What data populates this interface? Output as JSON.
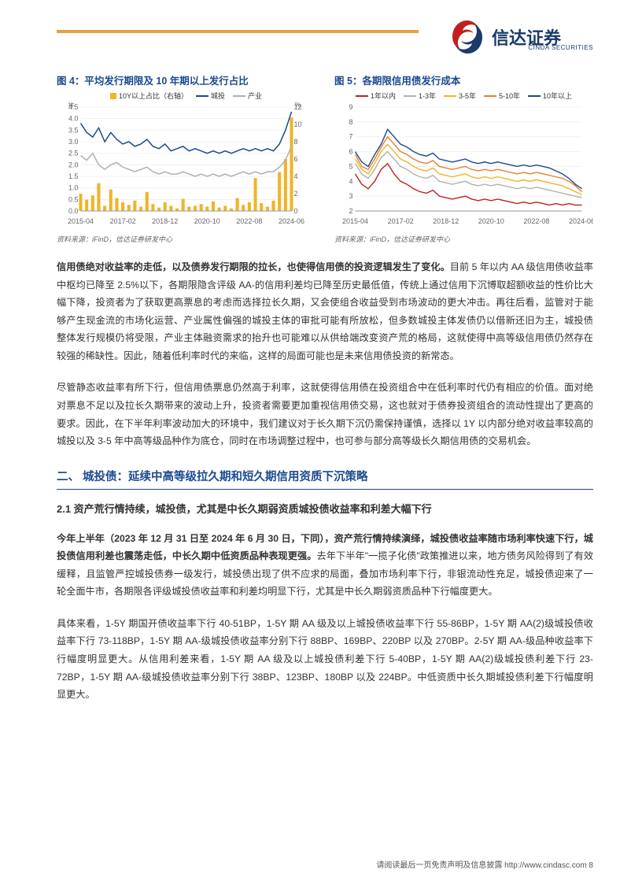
{
  "brand": {
    "cn": "信达证券",
    "en": "CINDA SECURITIES",
    "accent_navy": "#1a3a6a",
    "accent_red": "#c02020"
  },
  "top_bar_color": "#e8a040",
  "chart4": {
    "title": "图 4：平均发行期限及 10 年期以上发行占比",
    "source": "资料来源：iFinD，信达证券研发中心",
    "type": "combo-bar-line",
    "x_labels": [
      "2015-04",
      "2017-02",
      "2018-12",
      "2020-10",
      "2022-08",
      "2024-06"
    ],
    "y_left_label": "年",
    "y_right_label": "%",
    "y_left_lim": [
      0,
      4.5
    ],
    "y_left_ticks": [
      0,
      0.5,
      1.0,
      1.5,
      2.0,
      2.5,
      3.0,
      3.5,
      4.0,
      4.5
    ],
    "y_right_lim": [
      0,
      12
    ],
    "y_right_ticks": [
      0,
      2,
      4,
      6,
      8,
      10,
      12
    ],
    "background_color": "#ffffff",
    "grid_color": "#f0f0f0",
    "series": {
      "bars_10y": {
        "label": "10Y以上占比（右轴）",
        "color": "#f0b428",
        "axis": "right",
        "values": [
          2.0,
          1.3,
          1.8,
          3.2,
          0.6,
          2.5,
          1.5,
          1.0,
          0.7,
          1.2,
          0.5,
          2.2,
          0.8,
          0.4,
          1.0,
          0.6,
          0.3,
          1.4,
          0.5,
          0.6,
          0.8,
          0.5,
          1.1,
          0.4,
          0.6,
          0.3,
          1.5,
          0.7,
          1.0,
          3.8,
          0.9,
          0.5,
          1.2,
          4.5,
          6.0,
          10.8
        ]
      },
      "city_line": {
        "label": "城投",
        "color": "#1b4a8f",
        "axis": "left",
        "values": [
          3.8,
          3.4,
          3.2,
          3.6,
          3.0,
          3.4,
          3.1,
          2.9,
          3.0,
          2.8,
          2.9,
          3.1,
          2.8,
          2.7,
          2.9,
          2.6,
          2.7,
          2.8,
          2.6,
          2.7,
          2.6,
          2.5,
          2.6,
          2.5,
          2.6,
          2.5,
          2.6,
          2.7,
          2.6,
          2.7,
          2.6,
          2.7,
          2.6,
          2.9,
          3.5,
          4.3
        ]
      },
      "industry_line": {
        "label": "产业",
        "color": "#b0b0b0",
        "axis": "left",
        "values": [
          2.4,
          2.2,
          2.5,
          2.0,
          1.8,
          2.0,
          2.1,
          1.9,
          1.8,
          1.7,
          1.8,
          1.9,
          1.7,
          1.6,
          1.7,
          1.6,
          1.6,
          1.7,
          1.6,
          1.5,
          1.6,
          1.5,
          1.6,
          1.5,
          1.6,
          1.5,
          1.6,
          1.7,
          1.6,
          1.7,
          1.6,
          1.7,
          1.7,
          1.9,
          2.2,
          2.8
        ]
      }
    },
    "label_fontsize": 9,
    "line_width": 1.5
  },
  "chart5": {
    "title": "图 5：各期限信用债发行成本",
    "source": "资料来源：iFinD，信达证券研发中心",
    "type": "line",
    "x_labels": [
      "2015-04",
      "2017-02",
      "2018-12",
      "2020-10",
      "2022-08",
      "2024-06"
    ],
    "y_lim": [
      2,
      9
    ],
    "y_ticks": [
      2,
      3,
      4,
      5,
      6,
      7,
      8,
      9
    ],
    "background_color": "#ffffff",
    "grid_color": "#f0f0f0",
    "series": {
      "lt1y": {
        "label": "1年以内",
        "color": "#c02020",
        "values": [
          4.5,
          3.8,
          3.5,
          4.0,
          4.8,
          5.2,
          4.5,
          4.0,
          3.8,
          3.5,
          3.3,
          3.2,
          3.4,
          3.0,
          2.9,
          2.8,
          2.9,
          3.0,
          2.8,
          2.7,
          2.8,
          2.7,
          2.8,
          2.7,
          2.6,
          2.5,
          2.6,
          2.5,
          2.6,
          2.5,
          2.4,
          2.5,
          2.4,
          2.5,
          2.4,
          2.4
        ]
      },
      "y1_3": {
        "label": "1-3年",
        "color": "#b0b0b0",
        "values": [
          5.2,
          4.5,
          4.2,
          4.8,
          5.6,
          6.0,
          5.5,
          5.0,
          4.8,
          4.5,
          4.3,
          4.2,
          4.4,
          4.0,
          3.9,
          3.8,
          3.9,
          4.0,
          3.8,
          3.7,
          3.8,
          3.7,
          3.8,
          3.7,
          3.6,
          3.5,
          3.6,
          3.5,
          3.6,
          3.5,
          3.4,
          3.3,
          3.2,
          3.1,
          3.0,
          2.9
        ]
      },
      "y3_5": {
        "label": "3-5年",
        "color": "#f0b428",
        "values": [
          5.5,
          4.8,
          4.5,
          5.2,
          6.0,
          6.5,
          6.0,
          5.5,
          5.3,
          5.0,
          4.8,
          4.7,
          4.9,
          4.5,
          4.4,
          4.3,
          4.4,
          4.5,
          4.3,
          4.2,
          4.3,
          4.2,
          4.3,
          4.2,
          4.1,
          4.0,
          4.1,
          4.0,
          4.1,
          4.0,
          3.9,
          3.8,
          3.7,
          3.5,
          3.3,
          3.1
        ]
      },
      "y5_10": {
        "label": "5-10年",
        "color": "#e88030",
        "values": [
          5.8,
          5.0,
          4.8,
          5.5,
          6.3,
          7.0,
          6.5,
          6.0,
          5.8,
          5.5,
          5.3,
          5.2,
          5.4,
          5.0,
          4.9,
          4.8,
          4.9,
          5.0,
          4.8,
          4.7,
          4.8,
          4.7,
          4.8,
          4.7,
          4.6,
          4.5,
          4.6,
          4.5,
          4.6,
          4.5,
          4.4,
          4.3,
          4.2,
          4.0,
          3.7,
          3.3
        ]
      },
      "gt10": {
        "label": "10年以上",
        "color": "#1b4a8f",
        "values": [
          6.0,
          5.3,
          5.0,
          5.8,
          6.5,
          7.5,
          7.0,
          6.5,
          6.3,
          6.0,
          5.8,
          5.7,
          5.9,
          5.5,
          5.4,
          5.3,
          5.4,
          5.5,
          5.3,
          5.2,
          5.3,
          5.2,
          5.3,
          5.2,
          5.1,
          5.0,
          5.1,
          5.0,
          5.1,
          5.0,
          4.9,
          4.7,
          4.5,
          4.2,
          3.8,
          3.5
        ]
      }
    },
    "label_fontsize": 9,
    "line_width": 1.4
  },
  "para1_bold": "信用债绝对收益率的走低，以及债券发行期限的拉长，也使得信用债的投资逻辑发生了变化。",
  "para1_rest": "目前 5 年以内 AA 级信用债收益率中枢均已降至 2.5%以下，各期限隐含评级 AA-的信用利差均已降至历史最低值，传统上通过信用下沉博取超额收益的性价比大幅下降，投资者为了获取更高票息的考虑而选择拉长久期，又会使组合收益受到市场波动的更大冲击。再往后看，监管对于能够产生现金流的市场化运营、产业属性偏强的城投主体的审批可能有所放松，但多数城投主体发债仍以借新还旧为主，城投债整体发行规模仍将受限，产业主体融资需求的抬升也可能难以从供给端改变资产荒的格局，这就使得中高等级信用债仍然存在较强的稀缺性。因此，随着低利率时代的来临，这样的局面可能也是未来信用债投资的新常态。",
  "para2": "尽管静态收益率有所下行，但信用债票息仍然高于利率，这就使得信用债在投资组合中在低利率时代仍有相应的价值。面对绝对票息不足以及拉长久期带来的波动上升，投资者需要更加重视信用债交易，这也就对于债券投资组合的流动性提出了更高的要求。因此，在下半年利率波动加大的环境中，我们建议对于长久期下沉仍需保持谨慎，选择以 1Y 以内部分绝对收益率较高的城投以及 3-5 年中高等级品种作为底仓，同时在市场调整过程中，也可参与部分高等级长久期信用债的交易机会。",
  "section2_title": "二、 城投债：延续中高等级拉久期和短久期信用资质下沉策略",
  "sub21_title": "2.1 资产荒行情持续，城投债，尤其是中长久期弱资质城投债收益率和利差大幅下行",
  "para3_bold": "今年上半年（2023 年 12 月 31 日至 2024 年 6 月 30 日，下同），资产荒行情持续演绎，城投债收益率随市场利率快速下行，城投债信用利差也震荡走低，中长久期中低资质品种表现更强。",
  "para3_rest": "去年下半年\"一揽子化债\"政策推进以来，地方债务风险得到了有效缓释，且监管严控城投债券一级发行，城投债出现了供不应求的局面，叠加市场利率下行，非银流动性充足，城投债迎来了一轮全面牛市，各期限各评级城投债收益率和利差均明显下行，尤其是中长久期弱资质品种下行幅度更大。",
  "para4": "具体来看，1-5Y 期国开债收益率下行 40-51BP，1-5Y 期 AA 级及以上城投债收益率下行 55-86BP，1-5Y 期 AA(2)级城投债收益率下行 73-118BP，1-5Y 期 AA-级城投债收益率分别下行 88BP、169BP、220BP 以及 270BP。2-5Y 期 AA-级品种收益率下行幅度明显更大。从信用利差来看，1-5Y 期 AA 级及以上城投债利差下行 5-40BP，1-5Y 期 AA(2)级城投债利差下行 23-72BP，1-5Y 期 AA-级城投债收益率分别下行 38BP、123BP、180BP 以及 224BP。中低资质中长久期城投债利差下行幅度明显更大。",
  "footer": "请阅读最后一页免责声明及信息披露 http://www.cindasc.com  8"
}
